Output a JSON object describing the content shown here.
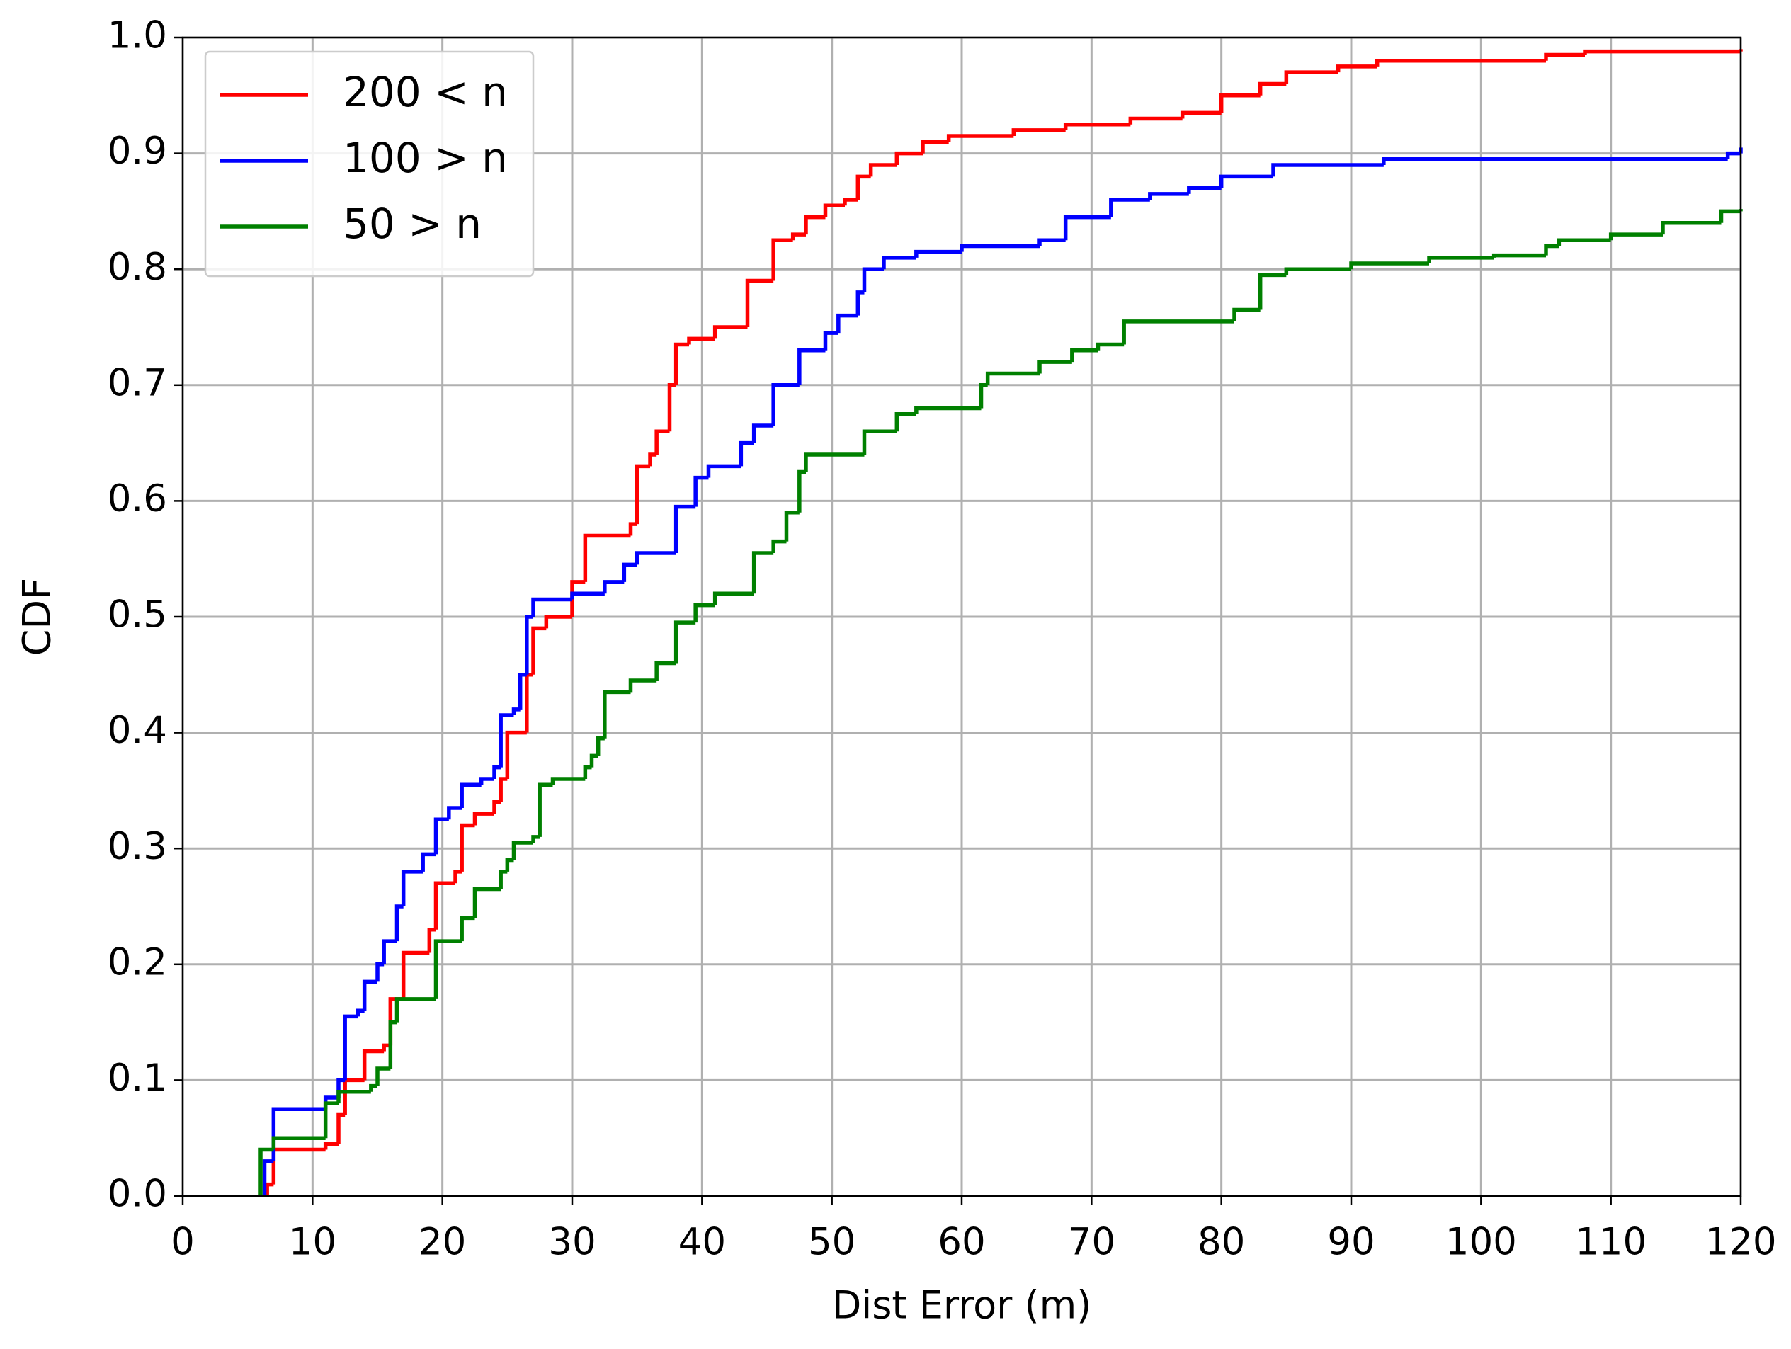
{
  "chart_data": {
    "type": "line",
    "drawstyle": "steps-post",
    "grid": true,
    "legend": "upper left",
    "xlabel": "Dist Error (m)",
    "ylabel": "CDF",
    "xlim": [
      0,
      120
    ],
    "ylim": [
      0,
      1
    ],
    "xticks": [
      0,
      10,
      20,
      30,
      40,
      50,
      60,
      70,
      80,
      90,
      100,
      110,
      120
    ],
    "yticks": [
      {
        "value": 0,
        "label": "0.0"
      },
      0.1,
      0.2,
      0.3,
      0.4,
      0.5,
      0.6,
      0.7,
      0.8,
      0.9,
      {
        "value": 1,
        "label": "1.0"
      }
    ],
    "series": [
      {
        "name": "200 < n",
        "color": "#ff0000",
        "x": [
          6.5,
          7,
          11,
          12,
          12.5,
          14,
          15.5,
          16,
          17,
          19,
          19.5,
          21,
          21.5,
          22.5,
          24,
          24.5,
          25,
          26.5,
          27,
          28,
          30,
          31,
          34.5,
          35,
          36,
          36.5,
          37.5,
          38,
          39,
          41,
          43.5,
          45.5,
          47,
          48,
          49.5,
          51,
          52,
          53,
          55,
          57,
          59,
          64,
          68,
          73,
          77,
          80,
          83,
          85,
          89,
          92,
          105,
          108,
          120
        ],
        "values": [
          0.01,
          0.04,
          0.045,
          0.07,
          0.1,
          0.125,
          0.13,
          0.17,
          0.21,
          0.23,
          0.27,
          0.28,
          0.32,
          0.33,
          0.34,
          0.36,
          0.4,
          0.45,
          0.49,
          0.5,
          0.53,
          0.57,
          0.58,
          0.63,
          0.64,
          0.66,
          0.7,
          0.735,
          0.74,
          0.75,
          0.79,
          0.825,
          0.83,
          0.845,
          0.855,
          0.86,
          0.88,
          0.89,
          0.9,
          0.91,
          0.915,
          0.92,
          0.925,
          0.93,
          0.935,
          0.95,
          0.96,
          0.97,
          0.975,
          0.98,
          0.985,
          0.988,
          0.99
        ]
      },
      {
        "name": "100 > n",
        "color": "#0000ff",
        "x": [
          6.3,
          7,
          11,
          12,
          12.5,
          13.5,
          14,
          15,
          15.5,
          16.5,
          17,
          18.5,
          19.5,
          20.5,
          21.5,
          23,
          24,
          24.5,
          25.5,
          26,
          26.5,
          27,
          30,
          32.5,
          34,
          35,
          38,
          39.5,
          40.5,
          43,
          44,
          45.5,
          47.5,
          49.5,
          50.5,
          52,
          52.5,
          54,
          56.5,
          60,
          66,
          68,
          71.5,
          74.5,
          77.5,
          80,
          84,
          92.5,
          119,
          120
        ],
        "values": [
          0.03,
          0.075,
          0.085,
          0.1,
          0.155,
          0.16,
          0.185,
          0.2,
          0.22,
          0.25,
          0.28,
          0.295,
          0.325,
          0.335,
          0.355,
          0.36,
          0.37,
          0.415,
          0.42,
          0.45,
          0.5,
          0.515,
          0.52,
          0.53,
          0.545,
          0.555,
          0.595,
          0.62,
          0.63,
          0.65,
          0.665,
          0.7,
          0.73,
          0.745,
          0.76,
          0.78,
          0.8,
          0.81,
          0.815,
          0.82,
          0.825,
          0.845,
          0.86,
          0.865,
          0.87,
          0.88,
          0.89,
          0.895,
          0.9,
          0.905
        ]
      },
      {
        "name": "50 > n",
        "color": "#008000",
        "x": [
          6,
          7,
          11,
          12,
          14.5,
          15,
          16,
          16.5,
          19.5,
          21.5,
          22.5,
          24.5,
          25,
          25.5,
          27,
          27.5,
          28.5,
          31,
          31.5,
          32,
          32.5,
          34.5,
          36.5,
          38,
          39.5,
          41,
          44,
          45.5,
          46.5,
          47.5,
          48,
          52.5,
          55,
          56.5,
          61.5,
          62,
          66,
          68.5,
          70.5,
          72.5,
          81,
          83,
          85,
          90,
          96,
          101,
          105,
          106,
          110,
          114,
          118.5,
          120
        ],
        "values": [
          0.04,
          0.05,
          0.08,
          0.09,
          0.095,
          0.11,
          0.15,
          0.17,
          0.22,
          0.24,
          0.265,
          0.28,
          0.29,
          0.305,
          0.31,
          0.355,
          0.36,
          0.37,
          0.38,
          0.395,
          0.435,
          0.445,
          0.46,
          0.495,
          0.51,
          0.52,
          0.555,
          0.565,
          0.59,
          0.625,
          0.64,
          0.66,
          0.675,
          0.68,
          0.7,
          0.71,
          0.72,
          0.73,
          0.735,
          0.755,
          0.765,
          0.795,
          0.8,
          0.805,
          0.81,
          0.812,
          0.82,
          0.825,
          0.83,
          0.84,
          0.85,
          0.852
        ]
      }
    ]
  }
}
